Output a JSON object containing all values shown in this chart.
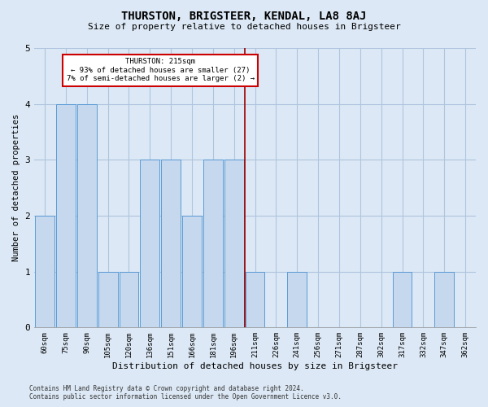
{
  "title": "THURSTON, BRIGSTEER, KENDAL, LA8 8AJ",
  "subtitle": "Size of property relative to detached houses in Brigsteer",
  "xlabel": "Distribution of detached houses by size in Brigsteer",
  "ylabel": "Number of detached properties",
  "footer": "Contains HM Land Registry data © Crown copyright and database right 2024.\nContains public sector information licensed under the Open Government Licence v3.0.",
  "bins": [
    "60sqm",
    "75sqm",
    "90sqm",
    "105sqm",
    "120sqm",
    "136sqm",
    "151sqm",
    "166sqm",
    "181sqm",
    "196sqm",
    "211sqm",
    "226sqm",
    "241sqm",
    "256sqm",
    "271sqm",
    "287sqm",
    "302sqm",
    "317sqm",
    "332sqm",
    "347sqm",
    "362sqm"
  ],
  "values": [
    2,
    4,
    4,
    1,
    1,
    3,
    3,
    2,
    3,
    3,
    1,
    0,
    1,
    0,
    0,
    0,
    0,
    1,
    0,
    1,
    0
  ],
  "bar_color": "#c5d8ee",
  "bar_edgecolor": "#5b9bd5",
  "vline_index": 10,
  "marker_label_line1": "THURSTON: 215sqm",
  "marker_label_line2": "← 93% of detached houses are smaller (27)",
  "marker_label_line3": "7% of semi-detached houses are larger (2) →",
  "annotation_box_facecolor": "#ffffff",
  "annotation_box_edgecolor": "#cc0000",
  "vline_color": "#990000",
  "grid_color": "#b0c4de",
  "bg_color": "#dce8f5",
  "ylim": [
    0,
    5
  ],
  "yticks": [
    0,
    1,
    2,
    3,
    4,
    5
  ]
}
